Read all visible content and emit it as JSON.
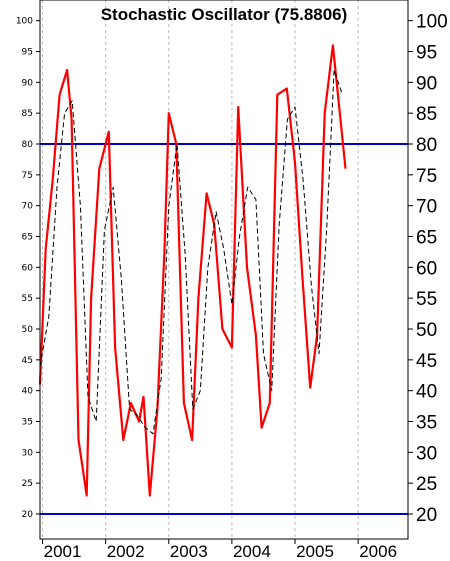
{
  "title": "Stochastic Oscillator (75.8806)",
  "colors": {
    "k_line": "#ff0000",
    "d_line": "#000000",
    "reference": "#0000cc",
    "grid": "#bbbbbb",
    "frame": "#000000"
  },
  "chart_data": {
    "type": "line",
    "title": "Stochastic Oscillator (75.8806)",
    "xlabel": "",
    "ylabel": "",
    "ylim": [
      14,
      104
    ],
    "xlim": [
      2000.96,
      2006.79
    ],
    "y_ticks": [
      20,
      25,
      30,
      35,
      40,
      45,
      50,
      55,
      60,
      65,
      70,
      75,
      80,
      85,
      90,
      95,
      100
    ],
    "x_ticks": [
      {
        "label": "2001",
        "value": 2001.0
      },
      {
        "label": "2002",
        "value": 2002.0
      },
      {
        "label": "2003",
        "value": 2003.0
      },
      {
        "label": "2004",
        "value": 2004.0
      },
      {
        "label": "2005",
        "value": 2005.0
      },
      {
        "label": "2006",
        "value": 2006.0
      }
    ],
    "grid": "vertical dashed at year boundaries",
    "reference_lines": [
      80,
      20
    ],
    "series": [
      {
        "style": "solid-red",
        "x": [
          2000.96,
          2001.05,
          2001.16,
          2001.27,
          2001.39,
          2001.46,
          2001.57,
          2001.7,
          2001.77,
          2001.9,
          2002.05,
          2002.15,
          2002.28,
          2002.4,
          2002.53,
          2002.6,
          2002.7,
          2002.82,
          2002.93,
          2003.0,
          2003.12,
          2003.24,
          2003.37,
          2003.47,
          2003.6,
          2003.72,
          2003.85,
          2004.0,
          2004.1,
          2004.24,
          2004.38,
          2004.47,
          2004.6,
          2004.72,
          2004.87,
          2005.0,
          2005.12,
          2005.24,
          2005.35,
          2005.47,
          2005.6,
          2005.7,
          2005.8
        ],
        "y": [
          41,
          63,
          74,
          88,
          92,
          84,
          32,
          23,
          55,
          76,
          82,
          47,
          32,
          38,
          35,
          39,
          23,
          37,
          62,
          85,
          80,
          38,
          32,
          55,
          72,
          67,
          50,
          47,
          86,
          60,
          49,
          34,
          38,
          88,
          89,
          77,
          58,
          40.5,
          49,
          85,
          96,
          86,
          76
        ]
      },
      {
        "style": "dashed-black",
        "x": [
          2000.96,
          2001.1,
          2001.23,
          2001.35,
          2001.47,
          2001.6,
          2001.72,
          2001.85,
          2001.98,
          2002.12,
          2002.25,
          2002.38,
          2002.5,
          2002.63,
          2002.75,
          2002.88,
          2003.0,
          2003.13,
          2003.26,
          2003.38,
          2003.5,
          2003.62,
          2003.75,
          2003.87,
          2004.0,
          2004.12,
          2004.25,
          2004.38,
          2004.5,
          2004.63,
          2004.75,
          2004.88,
          2005.0,
          2005.13,
          2005.26,
          2005.38,
          2005.5,
          2005.62,
          2005.75
        ],
        "y": [
          44,
          52,
          73,
          85,
          87,
          70,
          39,
          35,
          66,
          73,
          58,
          37,
          36,
          34,
          33,
          42,
          70,
          80,
          62,
          37,
          40,
          60,
          69,
          63,
          54,
          65,
          73,
          71,
          46,
          40,
          67,
          84,
          86,
          74,
          57,
          46,
          66,
          92,
          88
        ]
      }
    ]
  }
}
